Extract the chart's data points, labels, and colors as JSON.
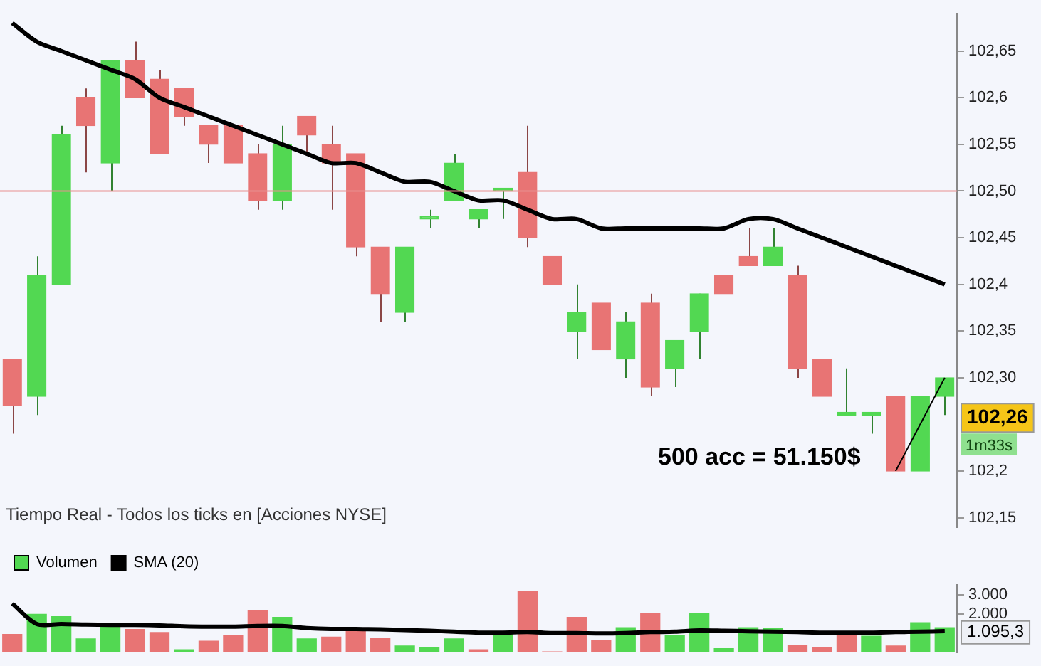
{
  "chart_data": [
    {
      "type": "candlestick",
      "categories": [
        null,
        null,
        null,
        null,
        null,
        null,
        null,
        null,
        null,
        null,
        null,
        null,
        null,
        null,
        null,
        null,
        null,
        null,
        null,
        null,
        null,
        null,
        null,
        null,
        null,
        null,
        null,
        null,
        null,
        null,
        null,
        null,
        null,
        null,
        null,
        null,
        null,
        null,
        null
      ],
      "ohlc": [
        [
          102.32,
          102.32,
          102.24,
          102.27
        ],
        [
          102.28,
          102.43,
          102.26,
          102.41
        ],
        [
          102.4,
          102.57,
          102.4,
          102.56
        ],
        [
          102.6,
          102.61,
          102.52,
          102.57
        ],
        [
          102.53,
          102.64,
          102.5,
          102.64
        ],
        [
          102.64,
          102.66,
          102.6,
          102.6
        ],
        [
          102.62,
          102.63,
          102.54,
          102.54
        ],
        [
          102.61,
          102.61,
          102.57,
          102.58
        ],
        [
          102.57,
          102.57,
          102.53,
          102.55
        ],
        [
          102.57,
          102.57,
          102.53,
          102.53
        ],
        [
          102.54,
          102.55,
          102.48,
          102.49
        ],
        [
          102.49,
          102.57,
          102.48,
          102.55
        ],
        [
          102.58,
          102.58,
          102.54,
          102.56
        ],
        [
          102.55,
          102.57,
          102.48,
          102.53
        ],
        [
          102.54,
          102.54,
          102.43,
          102.44
        ],
        [
          102.44,
          102.44,
          102.36,
          102.39
        ],
        [
          102.37,
          102.44,
          102.36,
          102.44
        ],
        [
          102.47,
          102.48,
          102.46,
          102.47
        ],
        [
          102.49,
          102.54,
          102.49,
          102.53
        ],
        [
          102.47,
          102.48,
          102.46,
          102.48
        ],
        [
          102.5,
          102.5,
          102.47,
          102.5
        ],
        [
          102.52,
          102.57,
          102.44,
          102.45
        ],
        [
          102.43,
          102.43,
          102.4,
          102.4
        ],
        [
          102.35,
          102.4,
          102.32,
          102.37
        ],
        [
          102.38,
          102.38,
          102.33,
          102.33
        ],
        [
          102.32,
          102.37,
          102.3,
          102.36
        ],
        [
          102.38,
          102.39,
          102.28,
          102.29
        ],
        [
          102.31,
          102.34,
          102.29,
          102.34
        ],
        [
          102.35,
          102.39,
          102.32,
          102.39
        ],
        [
          102.41,
          102.41,
          102.39,
          102.39
        ],
        [
          102.43,
          102.46,
          102.42,
          102.42
        ],
        [
          102.42,
          102.46,
          102.42,
          102.44
        ],
        [
          102.41,
          102.42,
          102.3,
          102.31
        ],
        [
          102.32,
          102.32,
          102.28,
          102.28
        ],
        [
          102.26,
          102.31,
          102.26,
          102.26
        ],
        [
          102.26,
          102.26,
          102.24,
          102.26
        ],
        [
          102.28,
          102.28,
          102.2,
          102.2
        ],
        [
          102.2,
          102.28,
          102.2,
          102.28
        ],
        [
          102.28,
          102.3,
          102.26,
          102.3
        ]
      ],
      "colors": [
        "#e87474",
        "#52d852",
        "#52d852",
        "#e87474",
        "#52d852",
        "#e87474",
        "#e87474",
        "#e87474",
        "#e87474",
        "#e87474",
        "#e87474",
        "#52d852",
        "#e87474",
        "#e87474",
        "#e87474",
        "#e87474",
        "#52d852",
        "#52d852",
        "#52d852",
        "#52d852",
        "#52d852",
        "#e87474",
        "#e87474",
        "#52d852",
        "#e87474",
        "#52d852",
        "#e87474",
        "#52d852",
        "#52d852",
        "#e87474",
        "#e87474",
        "#52d852",
        "#e87474",
        "#e87474",
        "#52d852",
        "#52d852",
        "#e87474",
        "#52d852",
        "#52d852"
      ],
      "series": [
        {
          "type": "line",
          "color": "#000000",
          "values": [
            102.68,
            102.66,
            102.65,
            102.64,
            102.63,
            102.62,
            102.6,
            102.59,
            102.58,
            102.57,
            102.56,
            102.55,
            102.54,
            102.53,
            102.53,
            102.52,
            102.51,
            102.51,
            102.5,
            102.49,
            102.49,
            102.48,
            102.47,
            102.47,
            102.46,
            102.46,
            102.46,
            102.46,
            102.46,
            102.46,
            102.47,
            102.47,
            102.46,
            102.45,
            102.44,
            102.43,
            102.42,
            102.41,
            102.4
          ]
        },
        {
          "type": "line",
          "color": "#000000",
          "values": [
            null,
            null,
            null,
            null,
            null,
            null,
            null,
            null,
            null,
            null,
            null,
            null,
            null,
            null,
            null,
            null,
            null,
            null,
            null,
            null,
            null,
            null,
            null,
            null,
            null,
            null,
            null,
            null,
            null,
            null,
            null,
            null,
            null,
            null,
            null,
            null,
            102.2,
            null,
            102.3
          ]
        }
      ],
      "ylim": [
        102.14,
        102.69
      ],
      "yticks": [
        {
          "value": 102.15,
          "label": "102,15"
        },
        {
          "value": 102.2,
          "label": "102,2"
        },
        {
          "value": 102.3,
          "label": "102,30"
        },
        {
          "value": 102.35,
          "label": "102,35"
        },
        {
          "value": 102.4,
          "label": "102,4"
        },
        {
          "value": 102.45,
          "label": "102,45"
        },
        {
          "value": 102.5,
          "label": "102,50"
        },
        {
          "value": 102.55,
          "label": "102,55"
        },
        {
          "value": 102.6,
          "label": "102,6"
        },
        {
          "value": 102.65,
          "label": "102,65"
        }
      ],
      "ref_lines": [
        {
          "axis": "y",
          "value": 102.5,
          "color": "#e89090"
        }
      ],
      "annotations": [
        "102,26",
        "1m33s",
        "500 acc = 51.150$",
        "Tiempo Real - Todos los ticks en [Acciones NYSE]"
      ],
      "grid": false
    },
    {
      "type": "bar",
      "categories": [
        null,
        null,
        null,
        null,
        null,
        null,
        null,
        null,
        null,
        null,
        null,
        null,
        null,
        null,
        null,
        null,
        null,
        null,
        null,
        null,
        null,
        null,
        null,
        null,
        null,
        null,
        null,
        null,
        null,
        null,
        null,
        null,
        null,
        null,
        null,
        null,
        null,
        null,
        null
      ],
      "series": [
        {
          "name": "Volumen",
          "colors": [
            "#e87474",
            "#52d852",
            "#52d852",
            "#52d852",
            "#52d852",
            "#e87474",
            "#e87474",
            "#52d852",
            "#e87474",
            "#e87474",
            "#e87474",
            "#52d852",
            "#52d852",
            "#e87474",
            "#e87474",
            "#e87474",
            "#52d852",
            "#52d852",
            "#52d852",
            "#e87474",
            "#52d852",
            "#e87474",
            "#e87474",
            "#e87474",
            "#e87474",
            "#52d852",
            "#e87474",
            "#52d852",
            "#52d852",
            "#52d852",
            "#52d852",
            "#52d852",
            "#e87474",
            "#e87474",
            "#e87474",
            "#52d852",
            "#e87474",
            "#52d852",
            "#52d852"
          ],
          "values": [
            950,
            2000,
            1880,
            720,
            1330,
            1210,
            1050,
            160,
            600,
            880,
            2190,
            1840,
            720,
            810,
            1120,
            740,
            350,
            260,
            720,
            160,
            1050,
            3190,
            50,
            1840,
            650,
            1300,
            2050,
            910,
            2050,
            210,
            1300,
            1260,
            400,
            260,
            950,
            860,
            350,
            1560,
            1300
          ]
        },
        {
          "name": "SMA (20)",
          "type": "line",
          "color": "#000000",
          "values": [
            2530,
            1470,
            1470,
            1440,
            1420,
            1420,
            1400,
            1350,
            1330,
            1330,
            1370,
            1370,
            1260,
            1210,
            1210,
            1190,
            1160,
            1120,
            1070,
            1020,
            1020,
            1050,
            1000,
            1000,
            980,
            1000,
            1050,
            1070,
            1140,
            1120,
            1090,
            1070,
            1050,
            1020,
            1020,
            1020,
            1050,
            1070,
            1100
          ]
        }
      ],
      "ylim": [
        0,
        3500
      ],
      "yticks": [
        {
          "value": 2000,
          "label": "2.000"
        },
        {
          "value": 3000,
          "label": "3.000"
        }
      ],
      "annotations": [
        "1.095,3"
      ],
      "legend": "top left",
      "grid": false
    }
  ]
}
